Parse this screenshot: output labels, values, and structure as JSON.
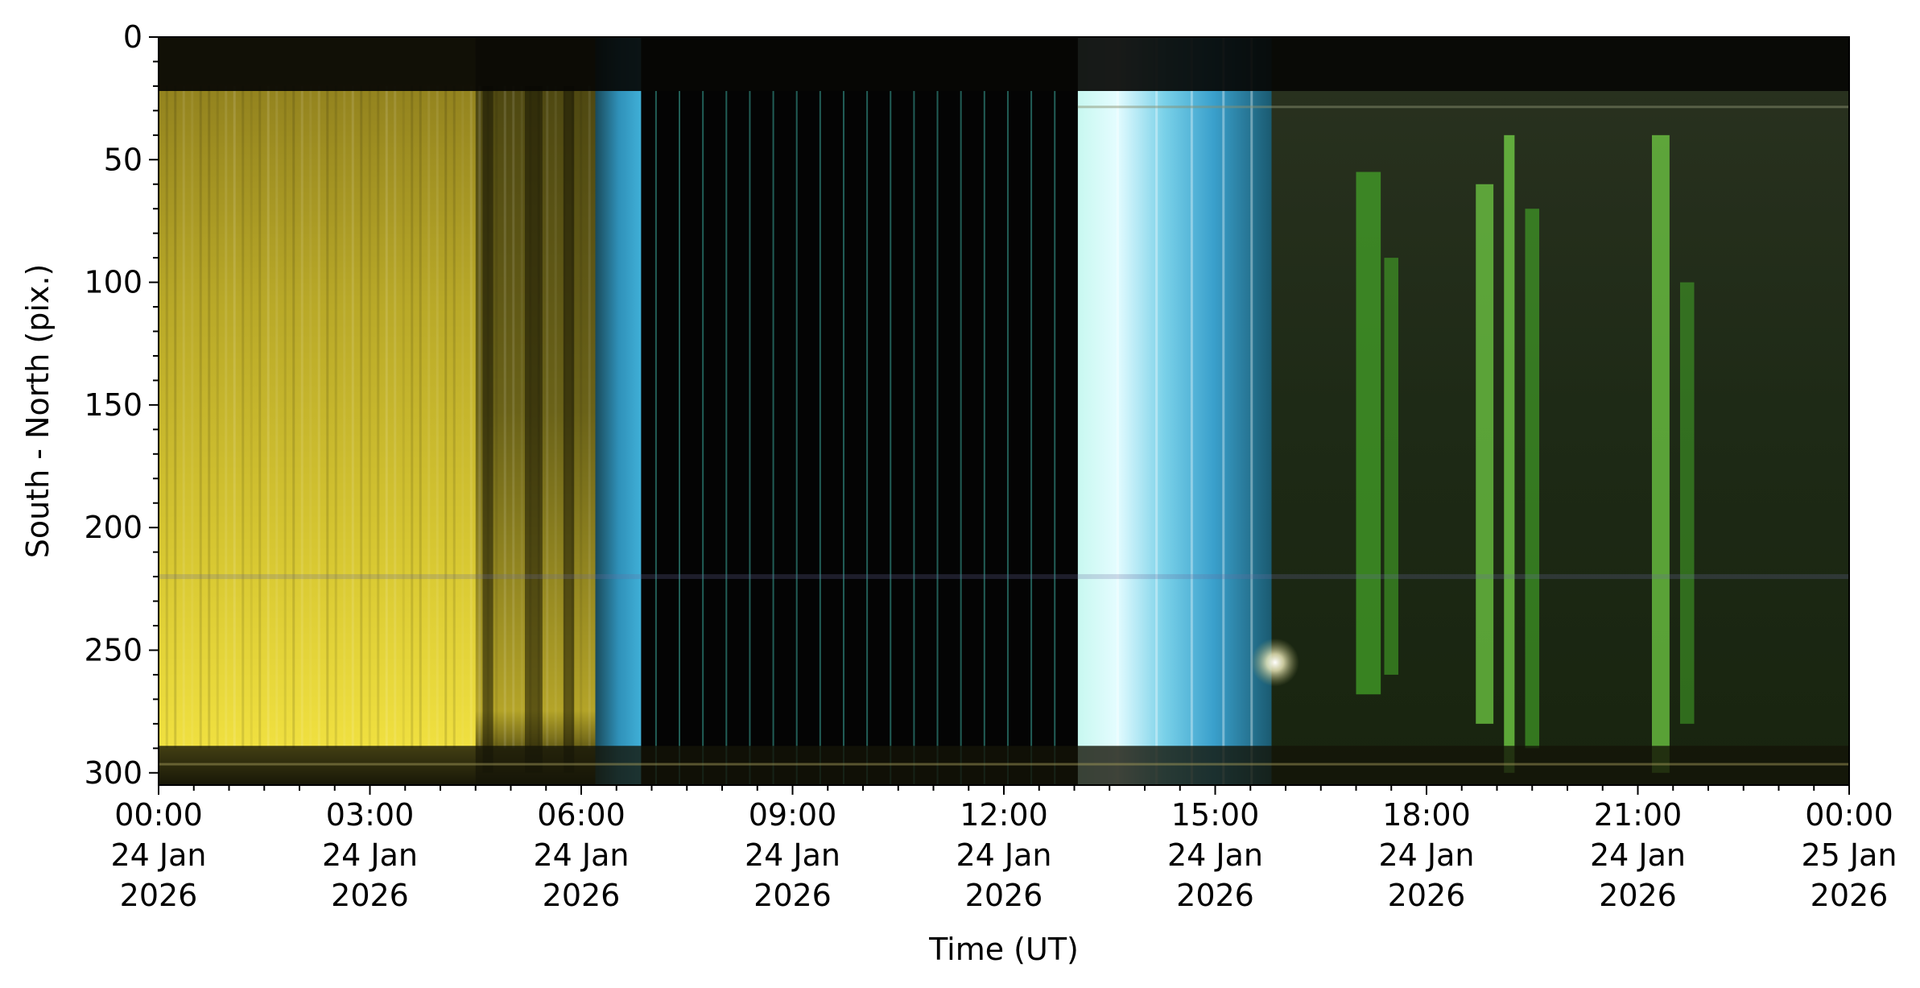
{
  "chart_data": {
    "type": "heatmap",
    "title": "",
    "xlabel": "Time (UT)",
    "ylabel": "South - North (pix.)",
    "x_unit": "hours of 24 Jan 2026 (UT)",
    "xlim": [
      0,
      24
    ],
    "ylim": [
      305,
      0
    ],
    "y_inverted": true,
    "grid": false,
    "legend": "none",
    "x_ticks": [
      {
        "value": 0,
        "lines": [
          "00:00",
          "24 Jan",
          "2026"
        ]
      },
      {
        "value": 3,
        "lines": [
          "03:00",
          "24 Jan",
          "2026"
        ]
      },
      {
        "value": 6,
        "lines": [
          "06:00",
          "24 Jan",
          "2026"
        ]
      },
      {
        "value": 9,
        "lines": [
          "09:00",
          "24 Jan",
          "2026"
        ]
      },
      {
        "value": 12,
        "lines": [
          "12:00",
          "24 Jan",
          "2026"
        ]
      },
      {
        "value": 15,
        "lines": [
          "15:00",
          "24 Jan",
          "2026"
        ]
      },
      {
        "value": 18,
        "lines": [
          "18:00",
          "24 Jan",
          "2026"
        ]
      },
      {
        "value": 21,
        "lines": [
          "21:00",
          "24 Jan",
          "2026"
        ]
      },
      {
        "value": 24,
        "lines": [
          "00:00",
          "25 Jan",
          "2026"
        ]
      }
    ],
    "y_ticks": [
      {
        "value": 0,
        "label": "0"
      },
      {
        "value": 50,
        "label": "50"
      },
      {
        "value": 100,
        "label": "100"
      },
      {
        "value": 150,
        "label": "150"
      },
      {
        "value": 200,
        "label": "200"
      },
      {
        "value": 250,
        "label": "250"
      },
      {
        "value": 300,
        "label": "300"
      }
    ],
    "x_minor_step": 0.5,
    "y_minor_step": 10,
    "colors": {
      "yellow_twilight": "#d8c832",
      "dark_yellow": "#6a6014",
      "cyan_twilight": "#38a8d0",
      "bright_cyan": "#c8f4f8",
      "night_black": "#040404",
      "night_green": "#1e2a14",
      "aurora_green": "#4ab82a",
      "aurora_bright": "#7ae04a"
    },
    "segments": [
      {
        "start": 0.0,
        "end": 4.5,
        "kind": "yellow"
      },
      {
        "start": 4.5,
        "end": 6.2,
        "kind": "fading-yellow"
      },
      {
        "start": 6.2,
        "end": 6.85,
        "kind": "cyan"
      },
      {
        "start": 6.85,
        "end": 13.05,
        "kind": "black-striped"
      },
      {
        "start": 13.05,
        "end": 15.8,
        "kind": "bright-cyan"
      },
      {
        "start": 15.8,
        "end": 24.0,
        "kind": "green-night"
      }
    ],
    "aurora_streaks": [
      {
        "x0": 17.0,
        "x1": 17.35,
        "y_top": 55,
        "y_bot": 268,
        "intensity": 0.8
      },
      {
        "x0": 17.4,
        "x1": 17.6,
        "y_top": 90,
        "y_bot": 260,
        "intensity": 0.5
      },
      {
        "x0": 18.7,
        "x1": 18.95,
        "y_top": 60,
        "y_bot": 280,
        "intensity": 0.9
      },
      {
        "x0": 19.1,
        "x1": 19.25,
        "y_top": 40,
        "y_bot": 300,
        "intensity": 1.0
      },
      {
        "x0": 19.4,
        "x1": 19.6,
        "y_top": 70,
        "y_bot": 290,
        "intensity": 0.6
      },
      {
        "x0": 21.2,
        "x1": 21.45,
        "y_top": 40,
        "y_bot": 300,
        "intensity": 0.9
      },
      {
        "x0": 21.6,
        "x1": 21.8,
        "y_top": 100,
        "y_bot": 280,
        "intensity": 0.4
      }
    ],
    "bright_spot": {
      "x": 15.85,
      "y": 255
    }
  }
}
